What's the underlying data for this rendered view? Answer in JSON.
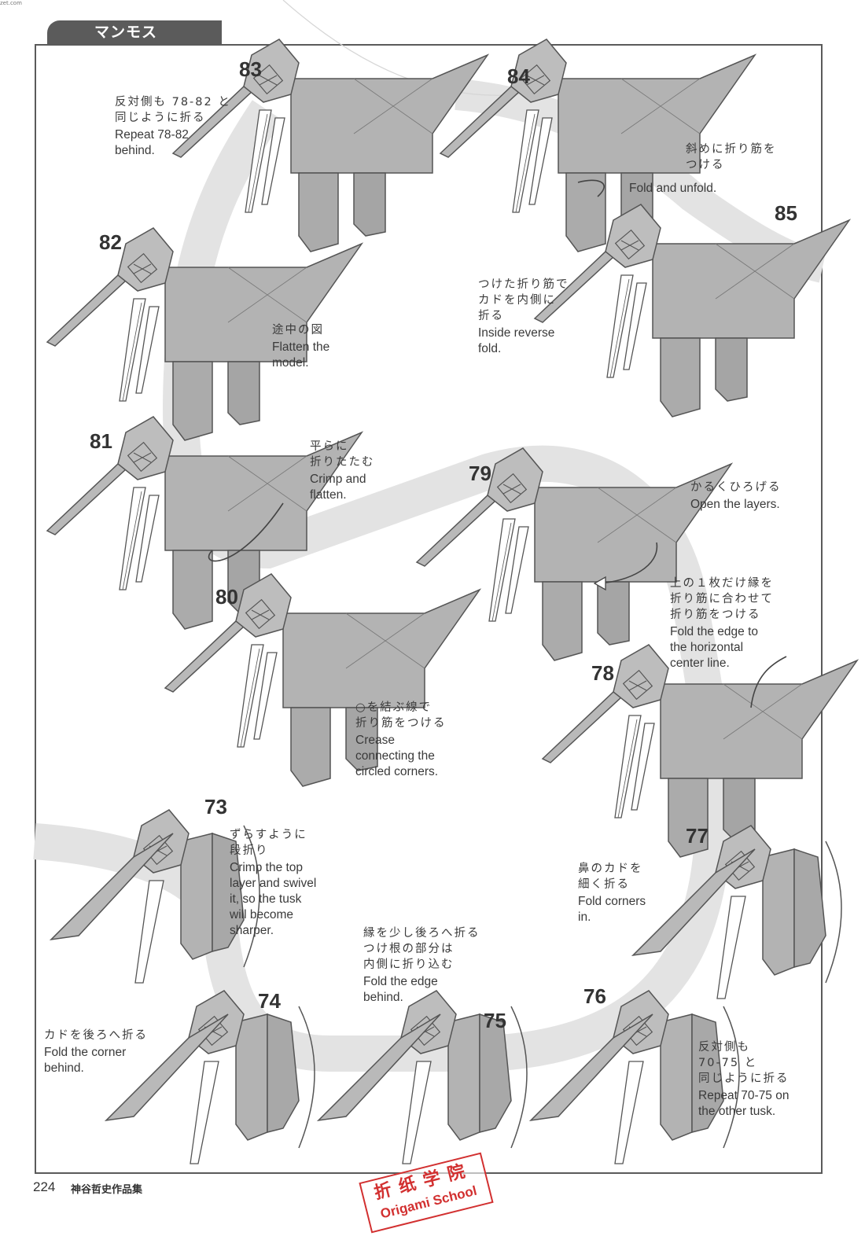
{
  "corner_mark": "zet.com",
  "header": {
    "tab_title": "マンモス"
  },
  "steps": [
    {
      "id": "83",
      "number": "83",
      "jp": "反対側も 78-82 と\n同じように折る",
      "en": "Repeat 78-82\nbehind."
    },
    {
      "id": "84",
      "number": "84",
      "jp": "斜めに折り筋を\nつける",
      "en": "Fold and unfold."
    },
    {
      "id": "85",
      "number": "85",
      "jp": "つけた折り筋で\nカドを内側に\n折る",
      "en": "Inside reverse\nfold."
    },
    {
      "id": "82",
      "number": "82",
      "jp": "途中の図",
      "en": "Flatten the\nmodel."
    },
    {
      "id": "81",
      "number": "81",
      "jp": "平らに\n折りたたむ",
      "en": "Crimp and\nflatten."
    },
    {
      "id": "79",
      "number": "79",
      "jp": "かるくひろげる",
      "en": "Open the layers."
    },
    {
      "id": "80",
      "number": "80",
      "jp": "○を結ぶ線で\n折り筋をつける",
      "en": "Crease\nconnecting the\ncircled corners."
    },
    {
      "id": "78",
      "number": "78",
      "jp": "上の１枚だけ縁を\n折り筋に合わせて\n折り筋をつける",
      "en": "Fold the edge to\nthe horizontal\ncenter line."
    },
    {
      "id": "73",
      "number": "73",
      "jp": "ずらすように\n段折り",
      "en": "Crimp the top\nlayer and swivel\nit, so the tusk\nwill become\nsharper."
    },
    {
      "id": "77",
      "number": "77",
      "jp": "鼻のカドを\n細く折る",
      "en": "Fold corners\nin."
    },
    {
      "id": "74",
      "number": "74",
      "jp": "カドを後ろへ折る",
      "en": "Fold the corner\nbehind."
    },
    {
      "id": "75",
      "number": "75",
      "jp": "縁を少し後ろへ折る\nつけ根の部分は\n内側に折り込む",
      "en": "Fold the edge\nbehind."
    },
    {
      "id": "76",
      "number": "76",
      "jp": "反対側も\n70-75 と\n同じように折る",
      "en": "Repeat 70-75 on\nthe other tusk."
    }
  ],
  "footer": {
    "page_number": "224",
    "book_title": "神谷哲史作品集"
  },
  "watermark": {
    "line1": "折纸学院",
    "line2": "Origami School"
  },
  "colors": {
    "paper": "#b3b3b3",
    "paper_dark": "#8f8f8f",
    "flow_band": "#e3e3e3",
    "stamp": "#d23030"
  }
}
